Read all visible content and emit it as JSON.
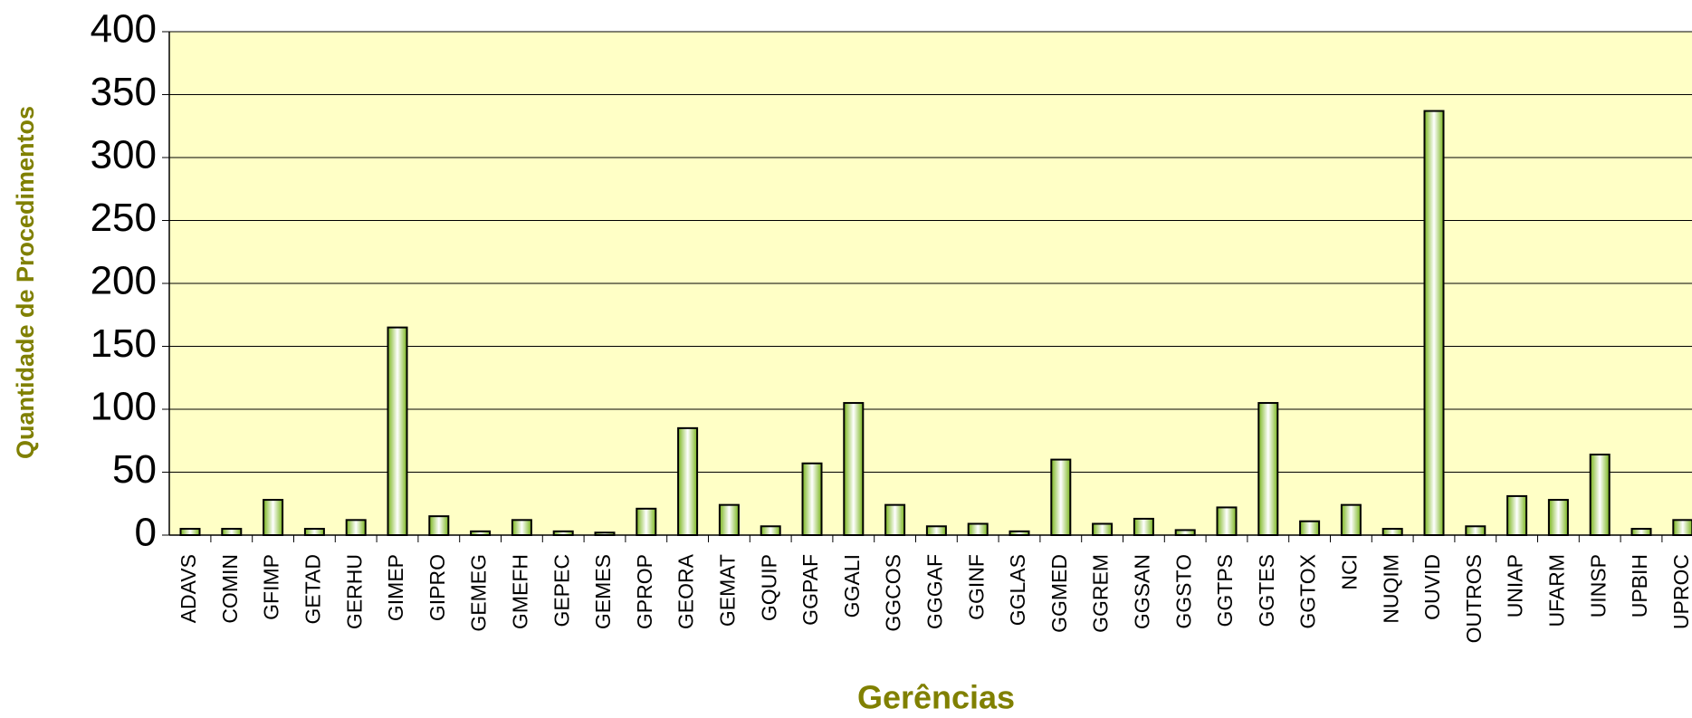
{
  "chart_data": {
    "type": "bar",
    "x_label": "Gerências",
    "y_label": "Quantidade de Procedimentos",
    "categories": [
      "ADAVS",
      "COMIN",
      "GFIMP",
      "GETAD",
      "GERHU",
      "GIMEP",
      "GIPRO",
      "GEMEG",
      "GMEFH",
      "GEPEC",
      "GEMES",
      "GPROP",
      "GEORA",
      "GEMAT",
      "GQUIP",
      "GGPAF",
      "GGALI",
      "GGCOS",
      "GGGAF",
      "GGINF",
      "GGLAS",
      "GGMED",
      "GGREM",
      "GGSAN",
      "GGSTO",
      "GGTPS",
      "GGTES",
      "GGTOX",
      "NCI",
      "NUQIM",
      "OUVID",
      "OUTROS",
      "UNIAP",
      "UFARM",
      "UINSP",
      "UPBIH",
      "UPROC"
    ],
    "values": [
      5,
      5,
      28,
      5,
      12,
      165,
      15,
      3,
      12,
      3,
      2,
      21,
      85,
      24,
      7,
      57,
      105,
      24,
      7,
      9,
      3,
      60,
      9,
      13,
      4,
      22,
      105,
      11,
      24,
      5,
      337,
      7,
      31,
      28,
      64,
      5,
      12
    ],
    "color": "#7ab51d",
    "ylim": [
      0,
      400
    ],
    "yticks": [
      0,
      50,
      100,
      150,
      200,
      250,
      300,
      350,
      400
    ],
    "grid": true
  }
}
